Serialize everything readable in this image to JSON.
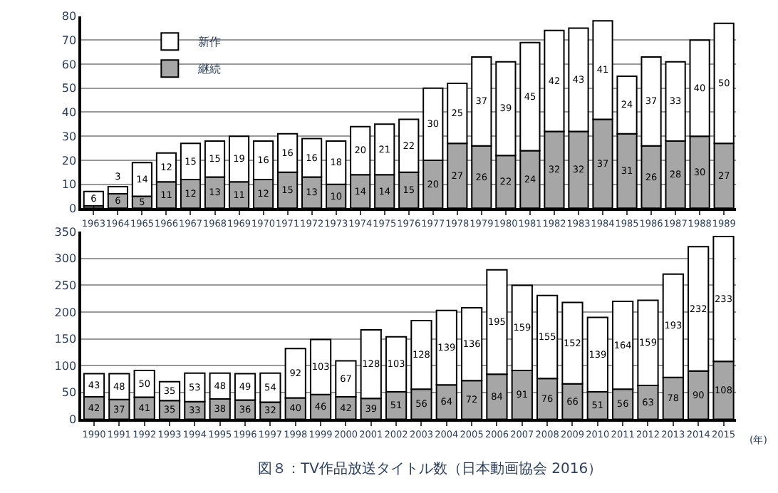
{
  "chart_data": [
    {
      "type": "bar",
      "stacked": true,
      "data_labels": true,
      "grid": "y",
      "legend": "top left",
      "categories": [
        "1963",
        "1964",
        "1965",
        "1966",
        "1967",
        "1968",
        "1969",
        "1970",
        "1971",
        "1972",
        "1973",
        "1974",
        "1975",
        "1976",
        "1977",
        "1978",
        "1979",
        "1980",
        "1981",
        "1982",
        "1983",
        "1984",
        "1985",
        "1986",
        "1987",
        "1988",
        "1989"
      ],
      "series": [
        {
          "name": "継続",
          "color": "#a6a6a6",
          "values": [
            1,
            6,
            5,
            11,
            12,
            13,
            11,
            12,
            15,
            13,
            10,
            14,
            14,
            15,
            20,
            27,
            26,
            22,
            24,
            32,
            32,
            37,
            31,
            26,
            28,
            30,
            27
          ]
        },
        {
          "name": "新作",
          "color": "#ffffff",
          "values": [
            6,
            3,
            14,
            12,
            15,
            15,
            19,
            16,
            16,
            16,
            18,
            20,
            21,
            22,
            30,
            25,
            37,
            39,
            45,
            42,
            43,
            41,
            24,
            37,
            33,
            40,
            50
          ]
        }
      ],
      "ylim": [
        0,
        80
      ],
      "yticks": [
        0,
        10,
        20,
        30,
        40,
        50,
        60,
        70,
        80
      ]
    },
    {
      "type": "bar",
      "stacked": true,
      "data_labels": true,
      "grid": "y",
      "legend": false,
      "categories": [
        "1990",
        "1991",
        "1992",
        "1993",
        "1994",
        "1995",
        "1996",
        "1997",
        "1998",
        "1999",
        "2000",
        "2001",
        "2002",
        "2003",
        "2004",
        "2005",
        "2006",
        "2007",
        "2008",
        "2009",
        "2010",
        "2011",
        "2012",
        "2013",
        "2014",
        "2015"
      ],
      "series": [
        {
          "color": "#a6a6a6",
          "values": [
            42,
            37,
            41,
            35,
            33,
            38,
            36,
            32,
            40,
            46,
            42,
            39,
            51,
            56,
            64,
            72,
            84,
            91,
            76,
            66,
            51,
            56,
            63,
            78,
            90,
            108
          ]
        },
        {
          "color": "#ffffff",
          "values": [
            43,
            48,
            50,
            35,
            53,
            48,
            49,
            54,
            92,
            103,
            67,
            128,
            103,
            128,
            139,
            136,
            195,
            159,
            155,
            152,
            139,
            164,
            159,
            193,
            232,
            233
          ]
        }
      ],
      "ylim": [
        0,
        350
      ],
      "yticks": [
        0,
        50,
        100,
        150,
        200,
        250,
        300,
        350
      ],
      "annotations": [
        "(年)",
        "図８：TV作品放送タイトル数（日本動画協会 2016）"
      ]
    }
  ]
}
